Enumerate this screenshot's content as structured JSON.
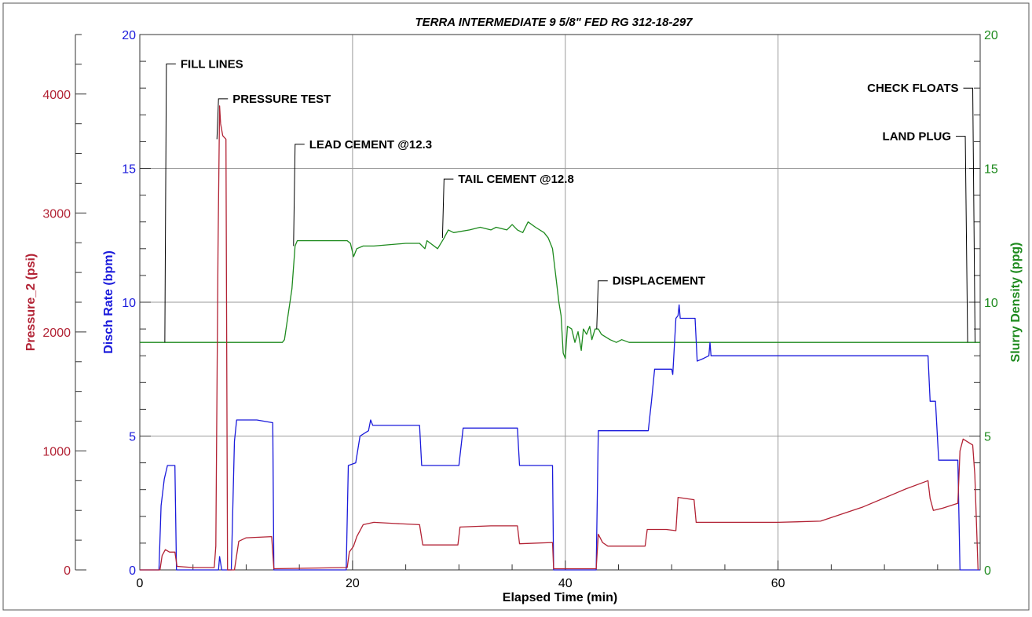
{
  "chart_data": {
    "type": "line",
    "title": "TERRA INTERMEDIATE 9 5/8\" FED RG 312-18-297",
    "xlabel": "Elapsed Time (min)",
    "xlim": [
      0,
      79
    ],
    "x_ticks": [
      "0",
      "20",
      "40",
      "60"
    ],
    "x_tick_values": [
      0,
      20,
      40,
      60
    ],
    "grid": true,
    "colors": {
      "pressure": "#b22234",
      "rate": "#1a1adb",
      "density": "#1e8a1e"
    },
    "axes": {
      "pressure": {
        "label": "Pressure_2 (psi)",
        "lim": [
          0,
          4500
        ],
        "ticks": [
          "0",
          "1000",
          "2000",
          "3000",
          "4000"
        ],
        "tick_values": [
          0,
          1000,
          2000,
          3000,
          4000
        ]
      },
      "rate": {
        "label": "Disch Rate (bpm)",
        "lim": [
          0,
          20
        ],
        "ticks": [
          "0",
          "5",
          "10",
          "15",
          "20"
        ],
        "tick_values": [
          0,
          5,
          10,
          15,
          20
        ]
      },
      "density": {
        "label": "Slurry Density (ppg)",
        "lim": [
          0,
          20
        ],
        "ticks": [
          "0",
          "5",
          "10",
          "15",
          "20"
        ],
        "tick_values": [
          0,
          5,
          10,
          15,
          20
        ]
      }
    },
    "series": [
      {
        "name": "Slurry Density (ppg)",
        "axis": "density",
        "points": [
          [
            0,
            8.5
          ],
          [
            13.4,
            8.5
          ],
          [
            13.6,
            8.6
          ],
          [
            14.3,
            10.5
          ],
          [
            14.6,
            12.1
          ],
          [
            14.8,
            12.3
          ],
          [
            16,
            12.3
          ],
          [
            19.5,
            12.3
          ],
          [
            19.8,
            12.2
          ],
          [
            20.1,
            11.7
          ],
          [
            20.4,
            12.0
          ],
          [
            21,
            12.1
          ],
          [
            22,
            12.1
          ],
          [
            25,
            12.2
          ],
          [
            26.3,
            12.2
          ],
          [
            26.8,
            12.0
          ],
          [
            27,
            12.3
          ],
          [
            28,
            12.0
          ],
          [
            28.6,
            12.4
          ],
          [
            29,
            12.7
          ],
          [
            29.5,
            12.6
          ],
          [
            31,
            12.7
          ],
          [
            32,
            12.8
          ],
          [
            33,
            12.7
          ],
          [
            33.5,
            12.8
          ],
          [
            34.5,
            12.7
          ],
          [
            35,
            12.9
          ],
          [
            35.5,
            12.7
          ],
          [
            36,
            12.6
          ],
          [
            36.5,
            13.0
          ],
          [
            37.2,
            12.8
          ],
          [
            38,
            12.6
          ],
          [
            38.4,
            12.4
          ],
          [
            38.8,
            12.0
          ],
          [
            39.1,
            11.0
          ],
          [
            39.4,
            10.0
          ],
          [
            39.6,
            9.5
          ],
          [
            39.8,
            8.1
          ],
          [
            40,
            7.9
          ],
          [
            40.2,
            9.1
          ],
          [
            40.6,
            9.0
          ],
          [
            40.9,
            8.5
          ],
          [
            41.2,
            8.9
          ],
          [
            41.5,
            8.2
          ],
          [
            41.7,
            9.0
          ],
          [
            42,
            8.8
          ],
          [
            42.3,
            9.1
          ],
          [
            42.5,
            8.6
          ],
          [
            42.8,
            9.0
          ],
          [
            43.1,
            9.0
          ],
          [
            43.4,
            8.8
          ],
          [
            43.8,
            8.7
          ],
          [
            44.2,
            8.6
          ],
          [
            44.8,
            8.5
          ],
          [
            45.3,
            8.6
          ],
          [
            46,
            8.5
          ],
          [
            60,
            8.5
          ],
          [
            79,
            8.5
          ]
        ]
      },
      {
        "name": "Disch Rate (bpm)",
        "axis": "rate",
        "points": [
          [
            0,
            0
          ],
          [
            1.8,
            0
          ],
          [
            2.0,
            2.4
          ],
          [
            2.3,
            3.4
          ],
          [
            2.6,
            3.9
          ],
          [
            3.3,
            3.9
          ],
          [
            3.45,
            0
          ],
          [
            7.4,
            0
          ],
          [
            7.5,
            0.5
          ],
          [
            7.7,
            0
          ],
          [
            8.6,
            0
          ],
          [
            8.9,
            4.8
          ],
          [
            9.1,
            5.6
          ],
          [
            10.5,
            5.6
          ],
          [
            11,
            5.6
          ],
          [
            12.5,
            5.5
          ],
          [
            12.6,
            0
          ],
          [
            19.4,
            0
          ],
          [
            19.6,
            3.9
          ],
          [
            20.3,
            4.0
          ],
          [
            20.7,
            5.0
          ],
          [
            21.5,
            5.2
          ],
          [
            21.7,
            5.6
          ],
          [
            21.9,
            5.4
          ],
          [
            24,
            5.4
          ],
          [
            26.3,
            5.4
          ],
          [
            26.5,
            3.9
          ],
          [
            30,
            3.9
          ],
          [
            30.4,
            5.3
          ],
          [
            33,
            5.3
          ],
          [
            35.5,
            5.3
          ],
          [
            35.7,
            3.9
          ],
          [
            38.8,
            3.9
          ],
          [
            38.9,
            0
          ],
          [
            42.9,
            0
          ],
          [
            43.1,
            5.2
          ],
          [
            45,
            5.2
          ],
          [
            47.8,
            5.2
          ],
          [
            48.1,
            6.3
          ],
          [
            48.4,
            7.5
          ],
          [
            50,
            7.5
          ],
          [
            50.1,
            7.3
          ],
          [
            50.4,
            9.4
          ],
          [
            50.6,
            9.5
          ],
          [
            50.7,
            9.9
          ],
          [
            50.8,
            9.4
          ],
          [
            52.2,
            9.4
          ],
          [
            52.4,
            7.8
          ],
          [
            53,
            7.9
          ],
          [
            53.5,
            8.0
          ],
          [
            53.6,
            8.5
          ],
          [
            53.7,
            8.0
          ],
          [
            60,
            8.0
          ],
          [
            74.1,
            8.0
          ],
          [
            74.3,
            6.3
          ],
          [
            74.8,
            6.3
          ],
          [
            75.1,
            4.1
          ],
          [
            75.8,
            4.1
          ],
          [
            76.9,
            4.1
          ],
          [
            77.1,
            0
          ],
          [
            79,
            0
          ]
        ]
      },
      {
        "name": "Pressure_2 (psi)",
        "axis": "pressure",
        "points": [
          [
            0,
            0
          ],
          [
            1.9,
            0
          ],
          [
            2.1,
            120
          ],
          [
            2.4,
            170
          ],
          [
            2.8,
            150
          ],
          [
            3.3,
            150
          ],
          [
            3.5,
            30
          ],
          [
            5,
            20
          ],
          [
            7.0,
            20
          ],
          [
            7.15,
            200
          ],
          [
            7.35,
            2700
          ],
          [
            7.5,
            3900
          ],
          [
            7.6,
            3750
          ],
          [
            7.8,
            3650
          ],
          [
            8.0,
            3630
          ],
          [
            8.1,
            3620
          ],
          [
            8.25,
            0
          ],
          [
            8.9,
            0
          ],
          [
            9.3,
            240
          ],
          [
            10,
            270
          ],
          [
            12.4,
            280
          ],
          [
            12.6,
            10
          ],
          [
            19.5,
            20
          ],
          [
            19.7,
            150
          ],
          [
            20.1,
            200
          ],
          [
            20.4,
            280
          ],
          [
            21,
            380
          ],
          [
            22,
            400
          ],
          [
            24,
            390
          ],
          [
            26.3,
            380
          ],
          [
            26.6,
            210
          ],
          [
            29.9,
            210
          ],
          [
            30.1,
            360
          ],
          [
            33,
            370
          ],
          [
            35.5,
            370
          ],
          [
            35.7,
            220
          ],
          [
            38.8,
            230
          ],
          [
            38.9,
            10
          ],
          [
            42.9,
            10
          ],
          [
            43.1,
            300
          ],
          [
            43.5,
            230
          ],
          [
            44,
            200
          ],
          [
            47.5,
            200
          ],
          [
            47.7,
            340
          ],
          [
            49.5,
            340
          ],
          [
            50.4,
            330
          ],
          [
            50.6,
            610
          ],
          [
            52.1,
            590
          ],
          [
            52.3,
            400
          ],
          [
            55,
            400
          ],
          [
            60,
            400
          ],
          [
            64,
            410
          ],
          [
            68,
            530
          ],
          [
            72,
            680
          ],
          [
            74.1,
            750
          ],
          [
            74.3,
            600
          ],
          [
            74.6,
            500
          ],
          [
            75.5,
            520
          ],
          [
            76.9,
            560
          ],
          [
            77.1,
            1000
          ],
          [
            77.4,
            1100
          ],
          [
            78.3,
            1050
          ],
          [
            78.5,
            800
          ],
          [
            78.8,
            0
          ]
        ]
      }
    ],
    "annotations": [
      {
        "label": "FILL LINES",
        "x": 2.5,
        "y": 18.9
      },
      {
        "label": "PRESSURE TEST",
        "x": 7.4,
        "y": 17.6
      },
      {
        "label": "LEAD CEMENT @12.3",
        "x": 14.6,
        "y": 15.9
      },
      {
        "label": "TAIL CEMENT @12.8",
        "x": 28.6,
        "y": 14.6
      },
      {
        "label": "DISPLACEMENT",
        "x": 43.1,
        "y": 10.8
      },
      {
        "label": "CHECK FLOATS",
        "x": 78.3,
        "y": 18.0
      },
      {
        "label": "LAND PLUG",
        "x": 77.6,
        "y": 16.2
      }
    ]
  }
}
